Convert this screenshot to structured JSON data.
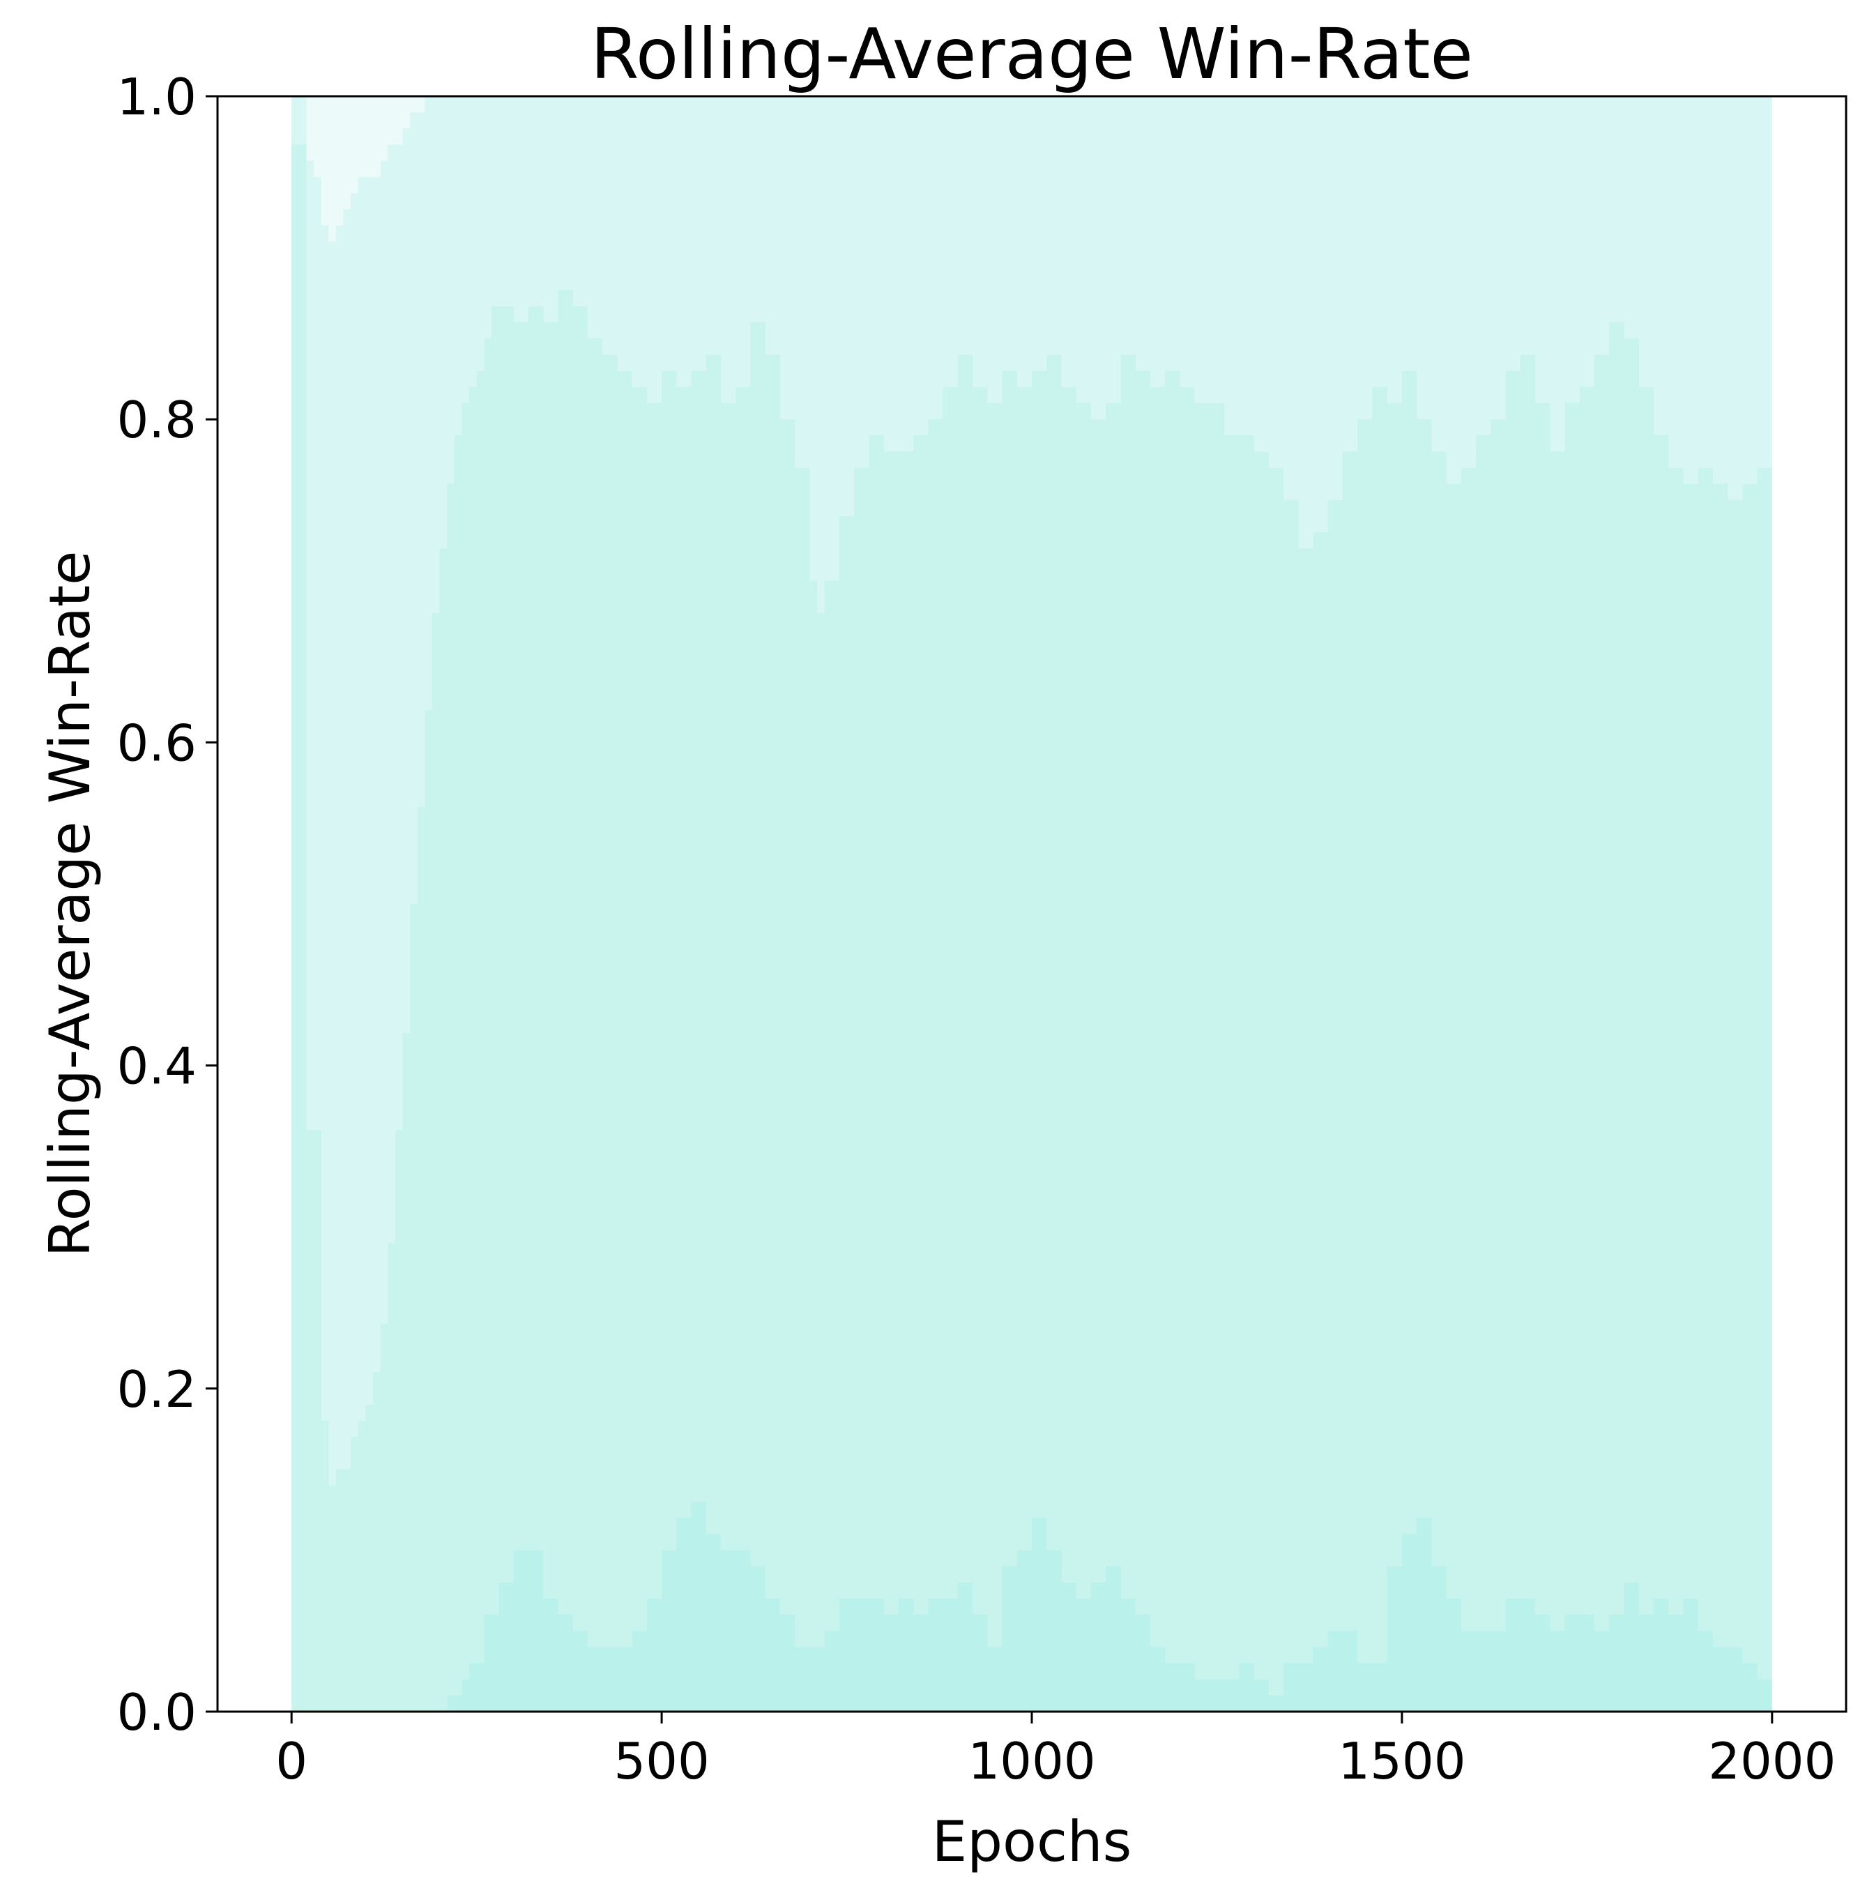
{
  "chart_data": {
    "type": "area",
    "title": "Rolling-Average Win-Rate",
    "xlabel": "Epochs",
    "ylabel": "Rolling-Average Win-Rate",
    "xlim": [
      -100,
      2100
    ],
    "ylim": [
      0.0,
      1.0
    ],
    "x_ticks": [
      0,
      500,
      1000,
      1500,
      2000
    ],
    "x_tick_labels": [
      "0",
      "500",
      "1000",
      "1500",
      "2000"
    ],
    "y_ticks": [
      0.0,
      0.2,
      0.4,
      0.6,
      0.8,
      1.0
    ],
    "y_tick_labels": [
      "0.0",
      "0.2",
      "0.4",
      "0.6",
      "0.8",
      "1.0"
    ],
    "grid": false,
    "legend": "none",
    "colors": {
      "background_band": "#d8f6f3",
      "upper_band": "#ecfbf9",
      "middle_band": "#c8f4ed",
      "lower_band": "#bbf1eb"
    },
    "series": [
      {
        "role": "max",
        "x": [
          0,
          10,
          20,
          30,
          40,
          50,
          60,
          70,
          80,
          90,
          100,
          120,
          130,
          140,
          150,
          160,
          170,
          180,
          2000
        ],
        "values": [
          1.0,
          1.0,
          0.96,
          0.95,
          0.92,
          0.91,
          0.92,
          0.93,
          0.94,
          0.95,
          0.95,
          0.96,
          0.97,
          0.97,
          0.98,
          0.99,
          0.99,
          1.0,
          1.0
        ]
      },
      {
        "role": "upper",
        "x": [
          0,
          20,
          40,
          50,
          60,
          80,
          90,
          100,
          110,
          120,
          130,
          140,
          150,
          160,
          170,
          180,
          190,
          200,
          210,
          220,
          230,
          240,
          250,
          260,
          270,
          280,
          300,
          320,
          340,
          360,
          380,
          400,
          420,
          440,
          460,
          480,
          500,
          520,
          540,
          560,
          580,
          600,
          620,
          640,
          660,
          680,
          700,
          710,
          720,
          740,
          760,
          780,
          800,
          820,
          840,
          860,
          880,
          900,
          920,
          940,
          960,
          980,
          1000,
          1020,
          1040,
          1060,
          1080,
          1100,
          1120,
          1140,
          1160,
          1180,
          1200,
          1220,
          1240,
          1260,
          1280,
          1300,
          1320,
          1340,
          1360,
          1380,
          1400,
          1420,
          1440,
          1460,
          1480,
          1500,
          1520,
          1540,
          1560,
          1580,
          1600,
          1620,
          1640,
          1660,
          1680,
          1700,
          1720,
          1740,
          1760,
          1780,
          1800,
          1820,
          1840,
          1860,
          1880,
          1900,
          1920,
          1940,
          1960,
          1980,
          2000
        ],
        "values": [
          0.97,
          0.36,
          0.18,
          0.14,
          0.15,
          0.17,
          0.18,
          0.19,
          0.21,
          0.24,
          0.29,
          0.36,
          0.42,
          0.5,
          0.56,
          0.62,
          0.68,
          0.72,
          0.76,
          0.79,
          0.81,
          0.82,
          0.83,
          0.85,
          0.87,
          0.87,
          0.86,
          0.87,
          0.86,
          0.88,
          0.87,
          0.85,
          0.84,
          0.83,
          0.82,
          0.81,
          0.83,
          0.82,
          0.83,
          0.84,
          0.81,
          0.82,
          0.86,
          0.84,
          0.8,
          0.77,
          0.7,
          0.68,
          0.7,
          0.74,
          0.77,
          0.79,
          0.78,
          0.78,
          0.79,
          0.8,
          0.82,
          0.84,
          0.82,
          0.81,
          0.83,
          0.82,
          0.83,
          0.84,
          0.82,
          0.81,
          0.8,
          0.81,
          0.84,
          0.83,
          0.82,
          0.83,
          0.82,
          0.81,
          0.81,
          0.79,
          0.79,
          0.78,
          0.77,
          0.75,
          0.72,
          0.73,
          0.75,
          0.78,
          0.8,
          0.82,
          0.81,
          0.83,
          0.8,
          0.78,
          0.76,
          0.77,
          0.79,
          0.8,
          0.83,
          0.84,
          0.81,
          0.78,
          0.81,
          0.82,
          0.84,
          0.86,
          0.85,
          0.82,
          0.79,
          0.77,
          0.76,
          0.77,
          0.76,
          0.75,
          0.76,
          0.77,
          0.8
        ]
      },
      {
        "role": "lower",
        "x": [
          0,
          20,
          40,
          60,
          80,
          100,
          120,
          140,
          160,
          180,
          200,
          210,
          220,
          230,
          240,
          260,
          280,
          300,
          320,
          340,
          360,
          380,
          400,
          420,
          440,
          460,
          480,
          500,
          520,
          540,
          560,
          580,
          600,
          620,
          640,
          660,
          680,
          700,
          720,
          740,
          760,
          780,
          800,
          820,
          840,
          860,
          880,
          900,
          920,
          940,
          960,
          980,
          1000,
          1020,
          1040,
          1060,
          1080,
          1100,
          1120,
          1140,
          1160,
          1180,
          1200,
          1220,
          1240,
          1260,
          1280,
          1300,
          1320,
          1340,
          1360,
          1380,
          1400,
          1420,
          1440,
          1460,
          1480,
          1500,
          1520,
          1540,
          1560,
          1580,
          1600,
          1620,
          1640,
          1660,
          1680,
          1700,
          1720,
          1740,
          1760,
          1780,
          1800,
          1820,
          1840,
          1860,
          1880,
          1900,
          1920,
          1940,
          1960,
          1980,
          2000
        ],
        "values": [
          0.0,
          0.0,
          0.0,
          0.0,
          0.0,
          0.0,
          0.0,
          0.0,
          0.0,
          0.0,
          0.0,
          0.01,
          0.01,
          0.02,
          0.03,
          0.06,
          0.08,
          0.1,
          0.1,
          0.07,
          0.06,
          0.05,
          0.04,
          0.04,
          0.04,
          0.05,
          0.07,
          0.1,
          0.12,
          0.13,
          0.11,
          0.1,
          0.1,
          0.09,
          0.07,
          0.06,
          0.04,
          0.04,
          0.05,
          0.07,
          0.07,
          0.07,
          0.06,
          0.07,
          0.06,
          0.07,
          0.07,
          0.08,
          0.06,
          0.04,
          0.09,
          0.1,
          0.12,
          0.1,
          0.08,
          0.07,
          0.08,
          0.09,
          0.07,
          0.06,
          0.04,
          0.03,
          0.03,
          0.02,
          0.02,
          0.02,
          0.03,
          0.02,
          0.01,
          0.03,
          0.03,
          0.04,
          0.05,
          0.05,
          0.03,
          0.03,
          0.09,
          0.11,
          0.12,
          0.09,
          0.07,
          0.05,
          0.05,
          0.05,
          0.07,
          0.07,
          0.06,
          0.05,
          0.06,
          0.06,
          0.05,
          0.06,
          0.08,
          0.06,
          0.07,
          0.06,
          0.07,
          0.05,
          0.04,
          0.04,
          0.03,
          0.02,
          0.02
        ]
      }
    ]
  }
}
